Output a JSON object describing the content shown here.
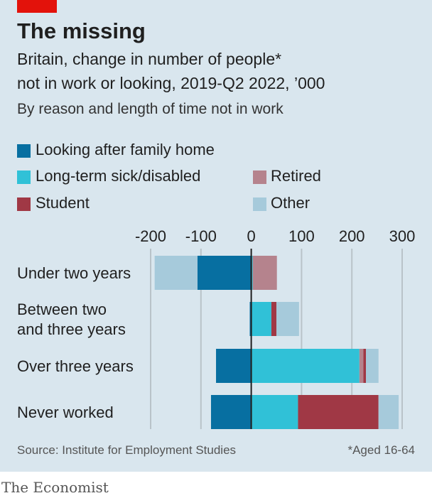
{
  "header": {
    "title": "The missing",
    "subtitle_line1": "Britain, change in number of people*",
    "subtitle_line2": "not in work or looking, 2019-Q2 2022, ’000",
    "subtitle_line3": "By reason and length of time not in work"
  },
  "footer": {
    "source": "Source: Institute for Employment Studies",
    "note": "*Aged 16-64",
    "brand": "The Economist"
  },
  "colors": {
    "panel_bg": "#d9e6ee",
    "accent_red": "#e3120b",
    "grid": "#b9c3c9"
  },
  "chart_data": {
    "type": "bar",
    "orientation": "horizontal",
    "stacked": true,
    "categories": [
      "Under two years",
      "Between two and three years",
      "Over three years",
      "Never worked"
    ],
    "category_lines": [
      [
        "Under two years"
      ],
      [
        "Between two",
        "and three years"
      ],
      [
        "Over three years"
      ],
      [
        "Never worked"
      ]
    ],
    "xlim": [
      -200,
      300
    ],
    "xticks": [
      -200,
      -100,
      0,
      100,
      200,
      300
    ],
    "xtick_labels": [
      "-200",
      "-100",
      "0",
      "100",
      "200",
      "300"
    ],
    "legend_position": "top",
    "series": [
      {
        "name": "Looking after family home",
        "color": "#076fa1",
        "values": [
          -107,
          -3,
          -70,
          -80
        ]
      },
      {
        "name": "Long-term sick/disabled",
        "color": "#30c1d7",
        "values": [
          3,
          40,
          215,
          93
        ]
      },
      {
        "name": "Retired",
        "color": "#b5838d",
        "values": [
          48,
          0,
          8,
          0
        ]
      },
      {
        "name": "Student",
        "color": "#a03845",
        "values": [
          0,
          10,
          5,
          160
        ]
      },
      {
        "name": "Other",
        "color": "#a6cadb",
        "values": [
          -85,
          45,
          25,
          40
        ]
      }
    ]
  }
}
